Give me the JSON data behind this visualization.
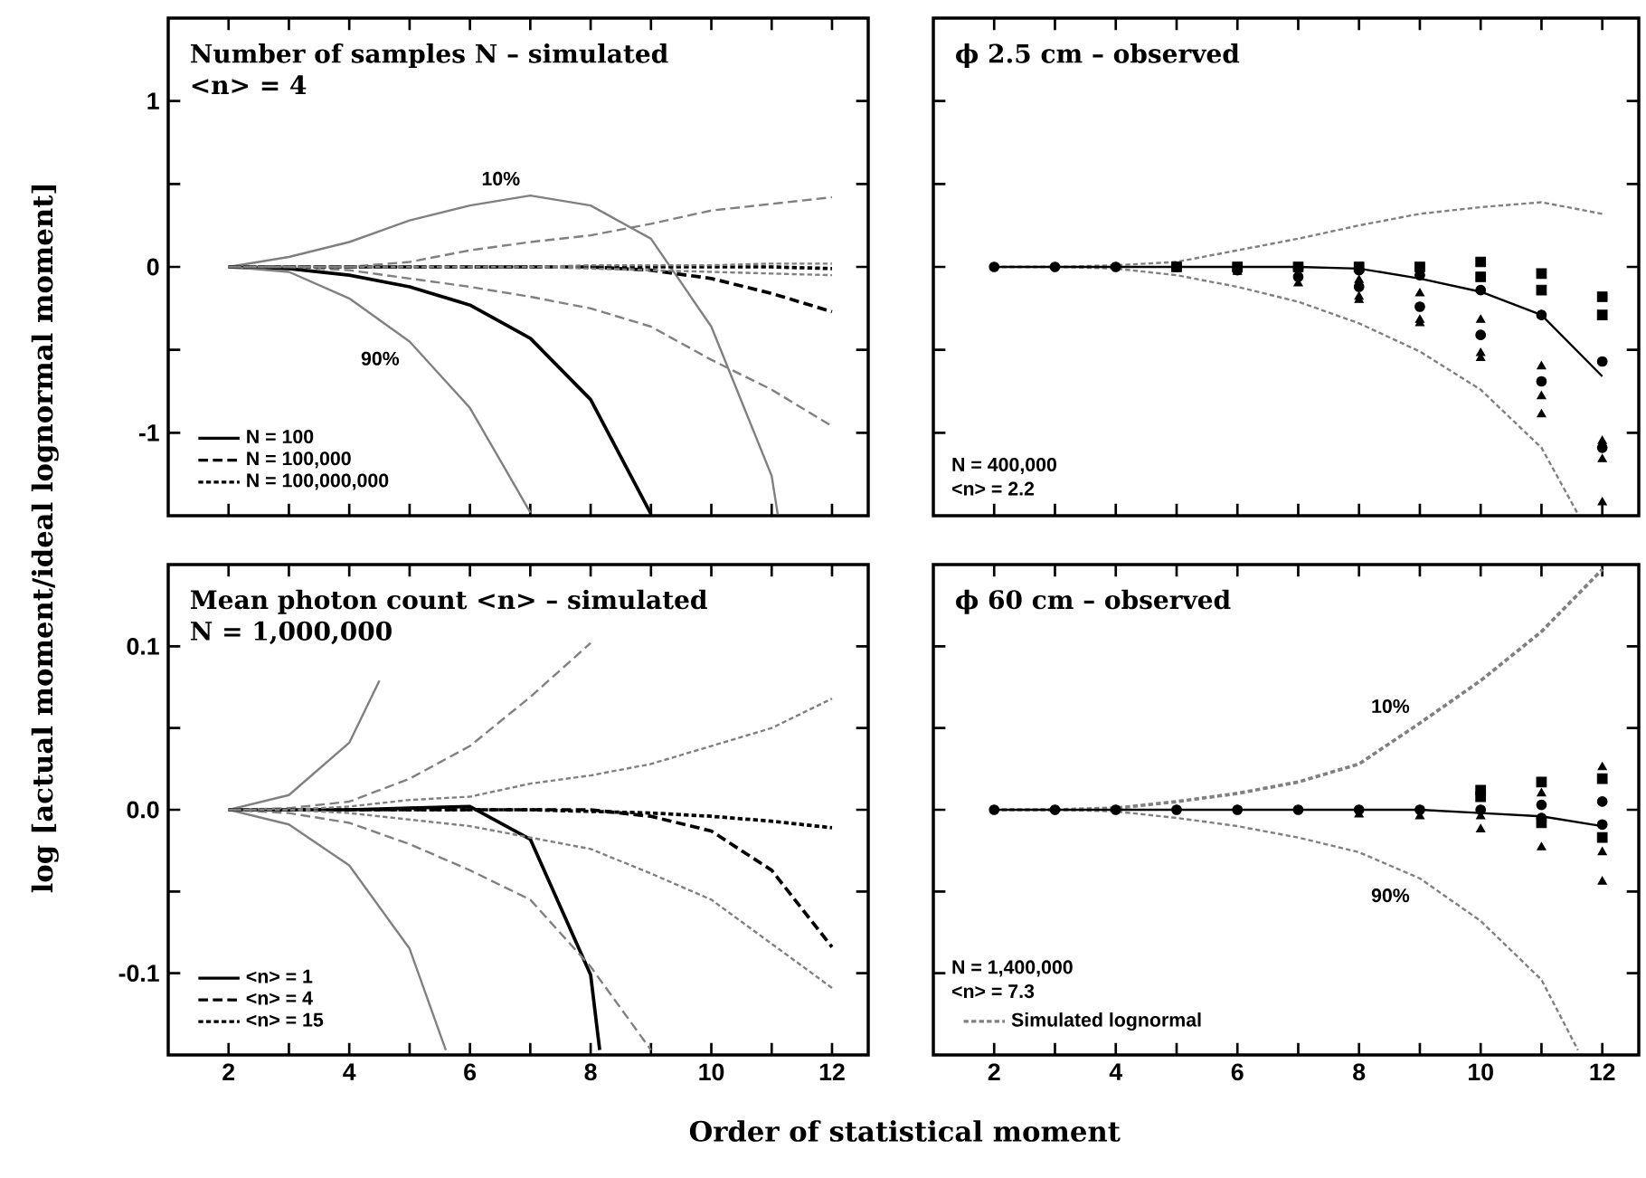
{
  "chart_data": [
    {
      "type": "line",
      "title": "Number of samples N – simulated",
      "subtitle": "<n> = 4",
      "ylabel": "log [actual moment/ideal lognormal moment]",
      "x": [
        2,
        3,
        4,
        5,
        6,
        7,
        8,
        9,
        10,
        11,
        12
      ],
      "xlim": [
        1,
        12.6
      ],
      "xticks": [
        2,
        {
          "value": 3,
          "label": null
        },
        4,
        {
          "value": 5,
          "label": null
        },
        6,
        {
          "value": 7,
          "label": null
        },
        8,
        {
          "value": 9,
          "label": null
        },
        10,
        {
          "value": 11,
          "label": null
        },
        12
      ],
      "ylim": [
        -1.5,
        1.5
      ],
      "yticks": [
        -1,
        {
          "value": -0.5,
          "label": null
        },
        0,
        {
          "value": 0.5,
          "label": null
        },
        1
      ],
      "tick_labels": "y",
      "legend": "bottom left",
      "annotations": [
        {
          "text": "10%",
          "x": 7,
          "y": 0.43
        },
        {
          "text": "90%",
          "x": 5,
          "y": -0.45
        }
      ],
      "series": [
        {
          "name": "N = 100",
          "color": "#000000",
          "line_style": "solid",
          "values": [
            0,
            -0.01,
            -0.05,
            -0.12,
            -0.23,
            -0.43,
            -0.8,
            -1.49,
            null,
            null,
            null
          ]
        },
        {
          "color": "#808080",
          "line_style": "solid",
          "x": [
            2,
            3,
            4,
            5,
            6,
            7,
            8,
            9,
            10,
            11,
            11.1
          ],
          "values": [
            0,
            0.06,
            0.15,
            0.28,
            0.37,
            0.43,
            0.37,
            0.17,
            -0.36,
            -1.26,
            -1.49
          ]
        },
        {
          "color": "#808080",
          "line_style": "solid",
          "x": [
            2,
            3,
            4,
            5,
            6,
            7
          ],
          "values": [
            0,
            -0.03,
            -0.19,
            -0.45,
            -0.85,
            -1.48
          ]
        },
        {
          "name": "N = 100,000",
          "color": "#000000",
          "line_style": "dashed",
          "values": [
            0,
            0,
            0,
            0,
            0,
            0,
            0,
            -0.02,
            -0.07,
            -0.16,
            -0.27
          ]
        },
        {
          "color": "#808080",
          "line_style": "dashed",
          "values": [
            0,
            0,
            0,
            0.03,
            0.1,
            0.15,
            0.19,
            0.26,
            0.34,
            0.38,
            0.42
          ]
        },
        {
          "color": "#808080",
          "line_style": "dashed",
          "values": [
            0,
            0,
            -0.02,
            -0.07,
            -0.12,
            -0.18,
            -0.25,
            -0.36,
            -0.56,
            -0.74,
            -0.96
          ]
        },
        {
          "name": "N = 100,000,000",
          "color": "#000000",
          "line_style": "dotted",
          "values": [
            0,
            0,
            0,
            0,
            0,
            0,
            0,
            0,
            0,
            0,
            -0.01
          ]
        },
        {
          "color": "#808080",
          "line_style": "dotted",
          "values": [
            0,
            0,
            0,
            0,
            0,
            0,
            0.01,
            0.01,
            0.01,
            0.02,
            0.02
          ]
        },
        {
          "color": "#808080",
          "line_style": "dotted",
          "values": [
            0,
            0,
            0,
            0,
            0,
            0,
            -0.01,
            -0.02,
            -0.03,
            -0.04,
            -0.05
          ]
        }
      ]
    },
    {
      "type": "line",
      "title": "ϕ 2.5 cm – observed",
      "x": [
        2,
        3,
        4,
        5,
        6,
        7,
        8,
        9,
        10,
        11,
        12
      ],
      "xlim": [
        1,
        12.6
      ],
      "xticks": [
        2,
        {
          "value": 3,
          "label": null
        },
        4,
        {
          "value": 5,
          "label": null
        },
        6,
        {
          "value": 7,
          "label": null
        },
        8,
        {
          "value": 9,
          "label": null
        },
        10,
        {
          "value": 11,
          "label": null
        },
        12
      ],
      "ylim": [
        -1.5,
        1.5
      ],
      "yticks": [
        -1,
        {
          "value": -0.5,
          "label": null
        },
        0,
        {
          "value": 0.5,
          "label": null
        },
        1
      ],
      "tick_labels": false,
      "annotations": [
        "N = 400,000",
        "<n> = 2.2"
      ],
      "series": [
        {
          "color": "#808080",
          "line_style": "dotted",
          "values": [
            0,
            0,
            0.01,
            0.03,
            0.1,
            0.17,
            0.25,
            0.32,
            0.36,
            0.39,
            0.32
          ]
        },
        {
          "color": "#808080",
          "line_style": "dotted",
          "x": [
            2,
            3,
            4,
            5,
            6,
            7,
            8,
            9,
            10,
            11,
            11.6
          ],
          "values": [
            0,
            0,
            -0.01,
            -0.05,
            -0.12,
            -0.21,
            -0.34,
            -0.51,
            -0.74,
            -1.09,
            -1.49
          ]
        },
        {
          "color": "#000000",
          "line_style": "solid",
          "values": [
            0,
            0,
            0,
            0,
            0,
            0,
            -0.01,
            -0.07,
            -0.15,
            -0.29,
            -0.66
          ]
        },
        {
          "type": "scatter",
          "color": "#000000",
          "marker": "square",
          "values": [
            null,
            null,
            null,
            0,
            0,
            0,
            0,
            null,
            0.03,
            -0.04,
            -0.18
          ]
        },
        {
          "type": "scatter",
          "color": "#000000",
          "marker": "square",
          "values": [
            null,
            null,
            null,
            null,
            null,
            null,
            null,
            0,
            -0.06,
            -0.14,
            -0.29
          ]
        },
        {
          "type": "scatter",
          "color": "#000000",
          "marker": "circle",
          "values": [
            null,
            null,
            null,
            null,
            null,
            -0.01,
            -0.02,
            -0.05,
            -0.14,
            -0.29,
            -0.57
          ]
        },
        {
          "type": "scatter",
          "color": "#000000",
          "marker": "triangle",
          "values": [
            null,
            null,
            null,
            null,
            null,
            null,
            -0.08,
            -0.16,
            -0.32,
            -0.6,
            -1.05
          ]
        },
        {
          "type": "scatter",
          "color": "#000000",
          "marker": "circle",
          "values": [
            0,
            0,
            0,
            0,
            -0.02,
            -0.06,
            -0.12,
            -0.24,
            -0.41,
            -0.69,
            -1.09
          ]
        },
        {
          "type": "scatter",
          "color": "#000000",
          "marker": "triangle",
          "values": [
            null,
            null,
            null,
            null,
            -0.03,
            null,
            -0.18,
            -0.32,
            -0.52,
            -0.78,
            -1.16
          ]
        },
        {
          "type": "scatter",
          "color": "#000000",
          "marker": "triangle",
          "values": [
            null,
            null,
            null,
            null,
            null,
            -0.1,
            -0.2,
            -0.34,
            -0.55,
            -0.89,
            -1.42
          ]
        }
      ]
    },
    {
      "type": "line",
      "title": "Mean photon count <n> – simulated",
      "subtitle": "N = 1,000,000",
      "xlabel": "Order of statistical moment",
      "x": [
        2,
        3,
        4,
        5,
        6,
        7,
        8,
        9,
        10,
        11,
        12
      ],
      "xlim": [
        1,
        12.6
      ],
      "xticks": [
        2,
        {
          "value": 3,
          "label": null
        },
        4,
        {
          "value": 5,
          "label": null
        },
        6,
        {
          "value": 7,
          "label": null
        },
        8,
        {
          "value": 9,
          "label": null
        },
        10,
        {
          "value": 11,
          "label": null
        },
        12
      ],
      "ylim": [
        -0.15,
        0.15
      ],
      "yticks": [
        -0.1,
        {
          "value": -0.05,
          "label": null
        },
        {
          "value": 0,
          "label": "0.0"
        },
        {
          "value": 0.05,
          "label": null
        },
        0.1
      ],
      "legend": "bottom left",
      "series": [
        {
          "name": "<n> = 1",
          "color": "#000000",
          "line_style": "solid",
          "x": [
            2,
            3,
            4,
            5,
            6,
            7,
            8,
            8.15
          ],
          "values": [
            0,
            0,
            0,
            0.001,
            0.002,
            -0.018,
            -0.101,
            -0.147
          ]
        },
        {
          "color": "#808080",
          "line_style": "solid",
          "x": [
            2,
            3,
            4,
            4.5
          ],
          "values": [
            0,
            0.009,
            0.041,
            0.079
          ]
        },
        {
          "color": "#808080",
          "line_style": "solid",
          "x": [
            2,
            3,
            4,
            5,
            5.6
          ],
          "values": [
            0,
            -0.009,
            -0.034,
            -0.085,
            -0.147
          ]
        },
        {
          "name": "<n> = 4",
          "color": "#000000",
          "line_style": "dashed",
          "values": [
            0,
            0,
            0,
            0,
            0,
            0,
            0,
            -0.004,
            -0.013,
            -0.037,
            -0.084
          ]
        },
        {
          "color": "#808080",
          "line_style": "dashed",
          "x": [
            2,
            3,
            4,
            5,
            6,
            7,
            8
          ],
          "values": [
            0,
            0.001,
            0.005,
            0.019,
            0.039,
            0.069,
            0.102
          ]
        },
        {
          "color": "#808080",
          "line_style": "dashed",
          "x": [
            2,
            3,
            4,
            5,
            6,
            7,
            8,
            9
          ],
          "values": [
            0,
            -0.002,
            -0.008,
            -0.021,
            -0.037,
            -0.055,
            -0.096,
            -0.147
          ]
        },
        {
          "name": "<n> = 15",
          "color": "#000000",
          "line_style": "dotted",
          "values": [
            0,
            0,
            0,
            0,
            0,
            0,
            -0.001,
            -0.002,
            -0.004,
            -0.007,
            -0.011
          ]
        },
        {
          "color": "#808080",
          "line_style": "dotted",
          "values": [
            0,
            0,
            0.002,
            0.006,
            0.008,
            0.016,
            0.021,
            0.028,
            0.039,
            0.05,
            0.068
          ]
        },
        {
          "color": "#808080",
          "line_style": "dotted",
          "values": [
            0,
            0,
            -0.002,
            -0.006,
            -0.01,
            -0.017,
            -0.024,
            -0.039,
            -0.055,
            -0.082,
            -0.109
          ]
        }
      ]
    },
    {
      "type": "line",
      "title": "ϕ 60 cm – observed",
      "x": [
        2,
        3,
        4,
        5,
        6,
        7,
        8,
        9,
        10,
        11,
        12
      ],
      "xlim": [
        1,
        12.6
      ],
      "xticks": [
        2,
        {
          "value": 3,
          "label": null
        },
        4,
        {
          "value": 5,
          "label": null
        },
        6,
        {
          "value": 7,
          "label": null
        },
        8,
        {
          "value": 9,
          "label": null
        },
        10,
        {
          "value": 11,
          "label": null
        },
        12
      ],
      "ylim": [
        -0.15,
        0.15
      ],
      "yticks": [
        -0.1,
        {
          "value": -0.05,
          "label": null
        },
        0,
        {
          "value": 0.05,
          "label": null
        },
        0.1
      ],
      "tick_labels": "x",
      "legend": "bottom left",
      "annotations": [
        "N = 1,400,000",
        "<n> = 7.3",
        {
          "text": "10%",
          "x": 9,
          "y": 0.053
        },
        {
          "text": "90%",
          "x": 9,
          "y": -0.042
        }
      ],
      "series": [
        {
          "name": "Simulated lognormal",
          "color": "#808080",
          "line_style": "dotted",
          "values": [
            0,
            0,
            0.001,
            0.005,
            0.01,
            0.017,
            0.028,
            0.053,
            0.079,
            0.109,
            0.147
          ]
        },
        {
          "color": "#808080",
          "line_style": "dotted",
          "x": [
            2,
            3,
            4,
            5,
            6,
            7,
            8,
            9,
            10,
            11,
            11.6
          ],
          "values": [
            0,
            0,
            -0.001,
            -0.005,
            -0.01,
            -0.017,
            -0.026,
            -0.042,
            -0.068,
            -0.104,
            -0.147
          ]
        },
        {
          "color": "#000000",
          "line_style": "solid",
          "values": [
            0,
            0,
            0,
            0,
            0,
            0,
            0,
            0,
            -0.002,
            -0.004,
            -0.01
          ]
        },
        {
          "type": "scatter",
          "color": "#000000",
          "marker": "square",
          "values": [
            null,
            null,
            null,
            null,
            null,
            null,
            null,
            null,
            0.012,
            -0.008,
            -0.017
          ]
        },
        {
          "type": "scatter",
          "color": "#000000",
          "marker": "square",
          "values": [
            null,
            null,
            null,
            null,
            null,
            null,
            null,
            null,
            0.008,
            0.017,
            0.019
          ]
        },
        {
          "type": "scatter",
          "color": "#000000",
          "marker": "circle",
          "values": [
            null,
            null,
            null,
            null,
            null,
            null,
            null,
            null,
            null,
            0.003,
            0.005
          ]
        },
        {
          "type": "scatter",
          "color": "#000000",
          "marker": "triangle",
          "values": [
            null,
            null,
            null,
            null,
            null,
            null,
            null,
            null,
            -0.004,
            null,
            -0.026
          ]
        },
        {
          "type": "scatter",
          "color": "#000000",
          "marker": "circle",
          "values": [
            0,
            0,
            0,
            0,
            0,
            0,
            0,
            0,
            0,
            -0.005,
            -0.009
          ]
        },
        {
          "type": "scatter",
          "color": "#000000",
          "marker": "triangle",
          "values": [
            null,
            null,
            null,
            null,
            null,
            null,
            -0.003,
            -0.004,
            -0.012,
            -0.023,
            -0.044
          ]
        },
        {
          "type": "scatter",
          "color": "#000000",
          "marker": "triangle",
          "values": [
            null,
            null,
            null,
            null,
            null,
            null,
            null,
            null,
            null,
            0.01,
            0.026
          ]
        }
      ]
    }
  ]
}
